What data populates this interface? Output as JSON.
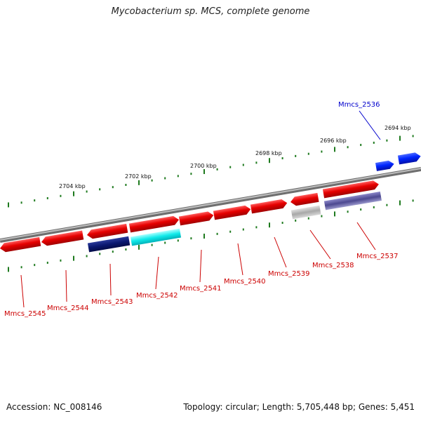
{
  "title": "Mycobacterium sp. MCS, complete genome",
  "footer": {
    "accession": "Accession: NC_008146",
    "summary": "Topology: circular; Length: 5,705,448 bp; Genes: 5,451"
  },
  "colors": {
    "backbone": "#8a8a8a",
    "ticks": "#1e7a1e",
    "label_red": "#cc0000",
    "label_blue": "#0000cc"
  },
  "scale_labels": [
    "2704 kbp",
    "2702 kbp",
    "2700 kbp",
    "2698 kbp",
    "2696 kbp",
    "2694 kbp"
  ],
  "genes": [
    {
      "name": "Mmcs_2545",
      "strand": "minus",
      "color": "red"
    },
    {
      "name": "Mmcs_2544",
      "strand": "minus",
      "color": "red"
    },
    {
      "name": "Mmcs_2543",
      "strand": "minus",
      "color": "red",
      "track": "navy"
    },
    {
      "name": "Mmcs_2542",
      "strand": "plus",
      "color": "red",
      "track": "cyan"
    },
    {
      "name": "Mmcs_2541",
      "strand": "plus",
      "color": "red"
    },
    {
      "name": "Mmcs_2540",
      "strand": "plus",
      "color": "red"
    },
    {
      "name": "Mmcs_2539",
      "strand": "plus",
      "color": "red"
    },
    {
      "name": "Mmcs_2538",
      "strand": "minus",
      "color": "red",
      "track": "gray"
    },
    {
      "name": "Mmcs_2537",
      "strand": "plus",
      "color": "red",
      "track": "slate"
    },
    {
      "name": "Mmcs_2536",
      "strand": "plus",
      "color": "blue",
      "highlight": true
    }
  ]
}
